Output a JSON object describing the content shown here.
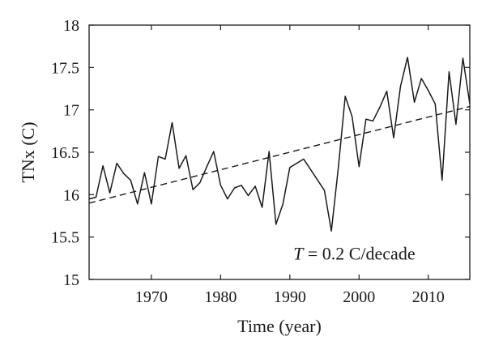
{
  "chart_data": {
    "type": "line",
    "title": "",
    "xlabel": "Time (year)",
    "ylabel": "TNx (C)",
    "xlim": [
      1961,
      2016
    ],
    "ylim": [
      15,
      18
    ],
    "xticks": [
      1970,
      1980,
      1990,
      2000,
      2010
    ],
    "yticks": [
      15,
      15.5,
      16,
      16.5,
      17,
      17.5,
      18
    ],
    "xtick_labels": [
      "1970",
      "1980",
      "1990",
      "2000",
      "2010"
    ],
    "ytick_labels": [
      "15",
      "15.5",
      "16",
      "16.5",
      "17",
      "17.5",
      "18"
    ],
    "grid": false,
    "series": [
      {
        "style": "solid",
        "color": "#1a1a1a",
        "x": [
          1961,
          1962,
          1963,
          1964,
          1965,
          1966,
          1967,
          1968,
          1969,
          1970,
          1971,
          1972,
          1973,
          1974,
          1975,
          1976,
          1977,
          1978,
          1979,
          1980,
          1981,
          1982,
          1983,
          1984,
          1985,
          1986,
          1987,
          1988,
          1989,
          1990,
          1992,
          1995,
          1996,
          1997,
          1998,
          1999,
          2000,
          2001,
          2002,
          2003,
          2004,
          2005,
          2006,
          2007,
          2008,
          2009,
          2010,
          2011,
          2012,
          2013,
          2014,
          2015,
          2016
        ],
        "values": [
          15.95,
          15.97,
          16.34,
          16.02,
          16.37,
          16.25,
          16.17,
          15.89,
          16.26,
          15.89,
          16.45,
          16.42,
          16.85,
          16.31,
          16.46,
          16.06,
          16.14,
          16.33,
          16.51,
          16.11,
          15.95,
          16.08,
          16.11,
          15.99,
          16.1,
          15.85,
          16.51,
          15.65,
          15.89,
          16.32,
          16.42,
          16.05,
          15.57,
          16.31,
          17.16,
          16.92,
          16.33,
          16.89,
          16.87,
          17.03,
          17.22,
          16.67,
          17.28,
          17.62,
          17.09,
          17.37,
          17.23,
          17.07,
          16.17,
          17.45,
          16.83,
          17.61,
          17.07
        ]
      },
      {
        "style": "dashed",
        "color": "#1a1a1a",
        "x": [
          1961,
          2016
        ],
        "values": [
          15.9,
          17.04
        ]
      }
    ],
    "annotations": [
      {
        "variable": "T",
        "text": " = 0.2 C/decade",
        "x": 1990.5,
        "y": 15.3
      }
    ]
  }
}
